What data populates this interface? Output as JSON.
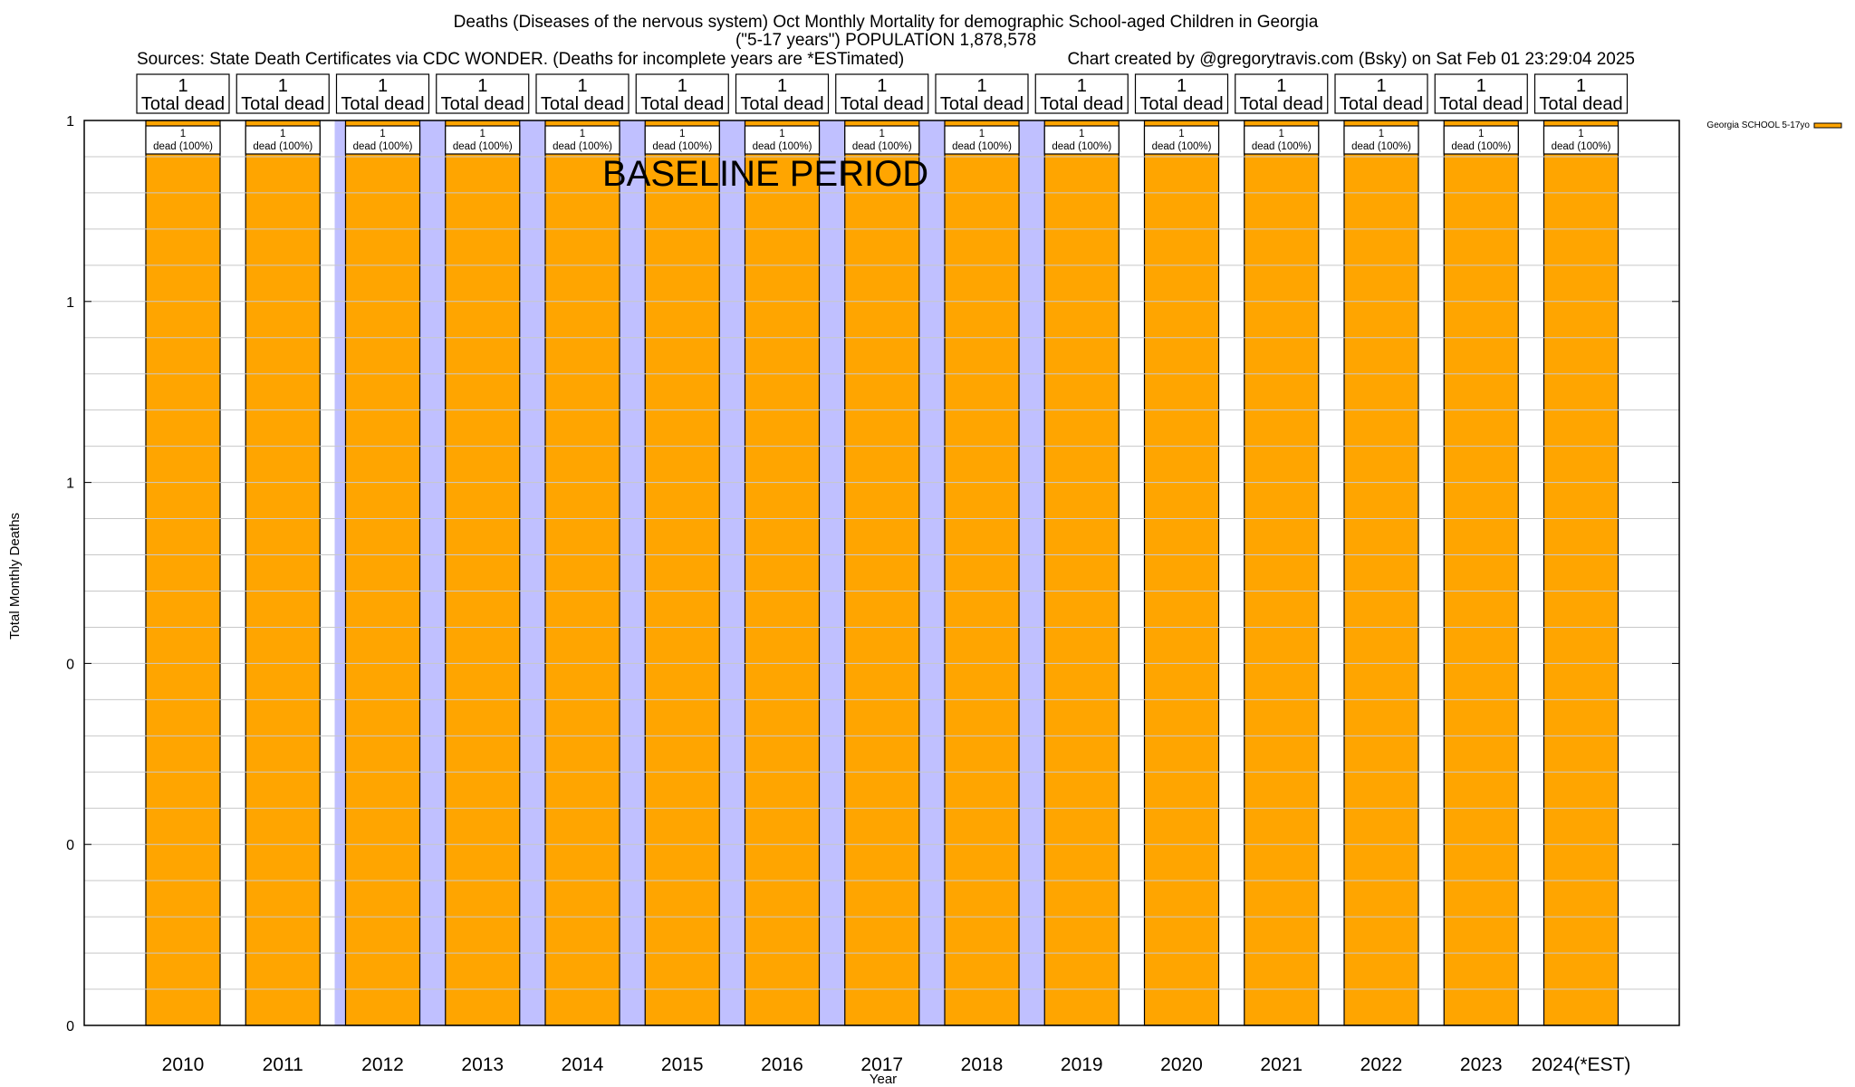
{
  "chart_data": {
    "type": "bar",
    "title_lines": [
      "Deaths (Diseases of the nervous system) Oct Monthly Mortality for demographic School-aged Children in Georgia",
      "(\"5-17 years\") POPULATION 1,878,578"
    ],
    "sources": "Sources: State Death Certificates via CDC WONDER. (Deaths for incomplete years are *ESTimated)",
    "credit": "Chart created by @gregorytravis.com (Bsky) on Sat Feb 01 23:29:04 2025",
    "xlabel": "Year",
    "ylabel": "Total Monthly Deaths",
    "ylim": [
      0,
      1
    ],
    "yticks": [
      0,
      0.2,
      0.4,
      0.6,
      0.8,
      1.0
    ],
    "ytick_labels": [
      "0",
      "0",
      "0",
      "1",
      "1",
      "1"
    ],
    "grid": true,
    "legend": {
      "placement": "top-right outside",
      "entries": [
        {
          "name": "Georgia SCHOOL 5-17yo",
          "color": "#ffa500"
        }
      ]
    },
    "categories": [
      "2010",
      "2011",
      "2012",
      "2013",
      "2014",
      "2015",
      "2016",
      "2017",
      "2018",
      "2019",
      "2020",
      "2021",
      "2022",
      "2023",
      "2024(*EST)"
    ],
    "series": [
      {
        "name": "Georgia SCHOOL 5-17yo",
        "color": "#ffa500",
        "values": [
          1,
          1,
          1,
          1,
          1,
          1,
          1,
          1,
          1,
          1,
          1,
          1,
          1,
          1,
          1
        ]
      }
    ],
    "top_labels": {
      "values": [
        "1",
        "1",
        "1",
        "1",
        "1",
        "1",
        "1",
        "1",
        "1",
        "1",
        "1",
        "1",
        "1",
        "1",
        "1"
      ],
      "caption": "Total dead"
    },
    "bar_labels": {
      "values": [
        "1",
        "1",
        "1",
        "1",
        "1",
        "1",
        "1",
        "1",
        "1",
        "1",
        "1",
        "1",
        "1",
        "1",
        "1"
      ],
      "caption": "dead (100%)"
    },
    "annotation": {
      "text": "BASELINE PERIOD",
      "period": [
        "2012",
        "2019"
      ],
      "color": "#c0c0ff"
    }
  }
}
